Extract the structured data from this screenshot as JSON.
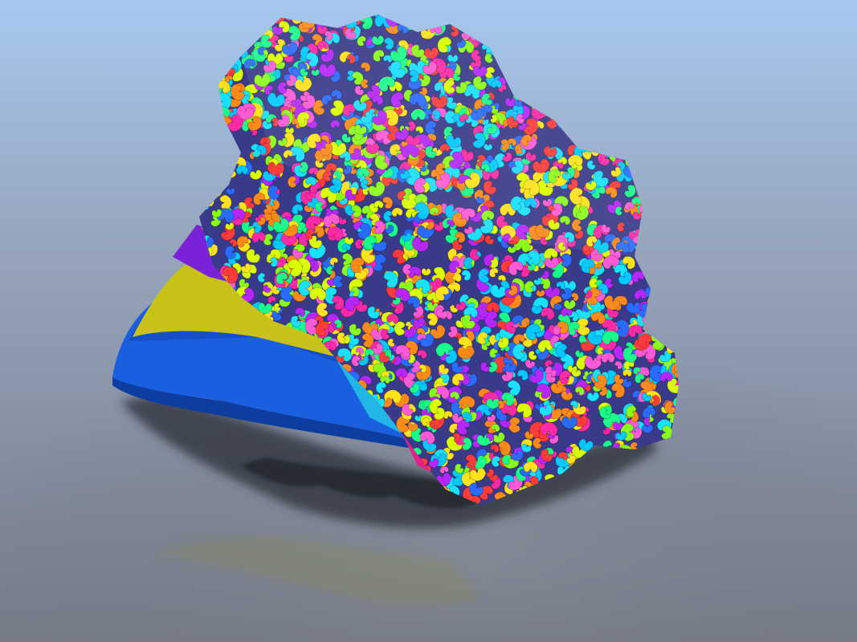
{
  "scene": {
    "sky_top_color": "#a6c8f0",
    "sky_mid_color": "#98a8c0",
    "floor_color": "#757a86",
    "shadow_color": "#2c2f37",
    "base_colors": [
      "#1a5fe0",
      "#c8c218",
      "#7a22d8",
      "#22b6e6",
      "#e6208a"
    ],
    "petal_palette": [
      "#ff2aa6",
      "#ffe21a",
      "#18e0ff",
      "#8bff1a",
      "#ff8a1a",
      "#b626ff",
      "#1aff8a",
      "#ff3b3b",
      "#2a6bff",
      "#ff5ad6",
      "#00c8ff",
      "#d9ff00"
    ]
  }
}
